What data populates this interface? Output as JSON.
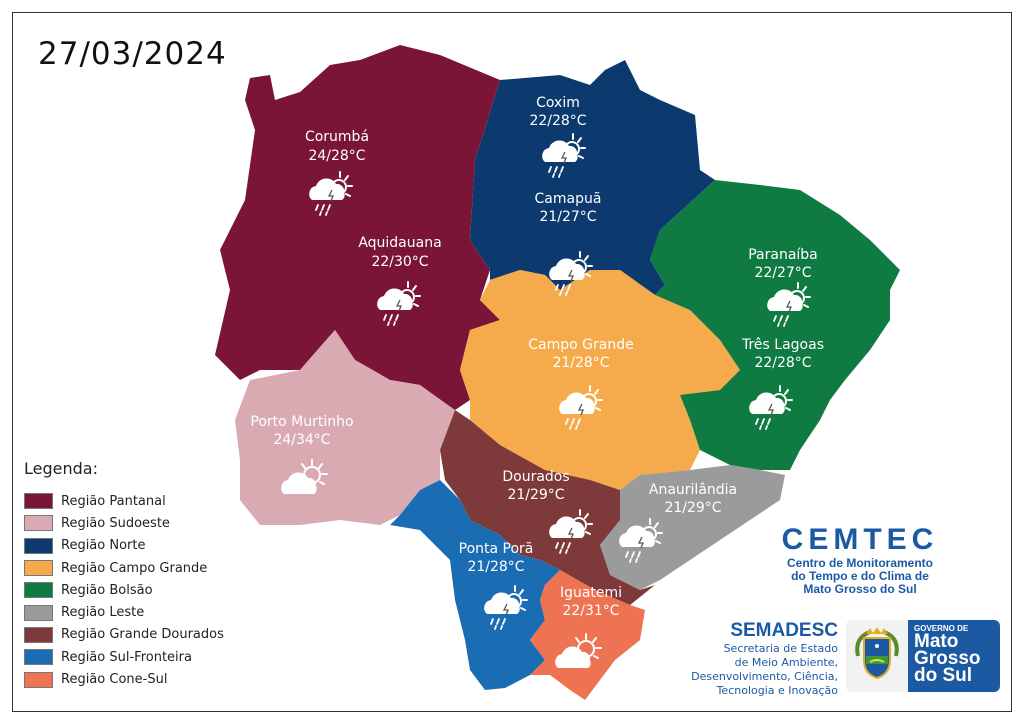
{
  "date": "27/03/2024",
  "regions": [
    {
      "id": "pantanal",
      "color": "#7a1538"
    },
    {
      "id": "sudoeste",
      "color": "#d9aab1"
    },
    {
      "id": "norte",
      "color": "#0d3a6e"
    },
    {
      "id": "campo-grande",
      "color": "#f5aa4b"
    },
    {
      "id": "bolsao",
      "color": "#0f7a41"
    },
    {
      "id": "leste",
      "color": "#9b9b9b"
    },
    {
      "id": "grande-dourados",
      "color": "#7e3a3b"
    },
    {
      "id": "sul-fronteira",
      "color": "#1a6db3"
    },
    {
      "id": "cone-sul",
      "color": "#ee7352"
    }
  ],
  "cities": [
    {
      "name": "Corumbá",
      "temp": "24/28°C",
      "icon": "storm-partly-cloudy"
    },
    {
      "name": "Aquidauana",
      "temp": "22/30°C",
      "icon": "storm-partly-cloudy"
    },
    {
      "name": "Coxim",
      "temp": "22/28°C",
      "icon": "storm-partly-cloudy"
    },
    {
      "name": "Camapuã",
      "temp": "21/27°C",
      "icon": "storm-partly-cloudy"
    },
    {
      "name": "Paranaíba",
      "temp": "22/27°C",
      "icon": "storm-partly-cloudy"
    },
    {
      "name": "Três Lagoas",
      "temp": "22/28°C",
      "icon": "storm-partly-cloudy"
    },
    {
      "name": "Campo Grande",
      "temp": "21/28°C",
      "icon": "storm-partly-cloudy"
    },
    {
      "name": "Porto Murtinho",
      "temp": "24/34°C",
      "icon": "partly-sunny"
    },
    {
      "name": "Dourados",
      "temp": "21/29°C",
      "icon": "storm-partly-cloudy"
    },
    {
      "name": "Anaurilândia",
      "temp": "21/29°C",
      "icon": "storm-partly-cloudy"
    },
    {
      "name": "Ponta Porã",
      "temp": "21/28°C",
      "icon": "storm-partly-cloudy"
    },
    {
      "name": "Iguatemi",
      "temp": "22/31°C",
      "icon": "partly-sunny"
    }
  ],
  "legend": {
    "title": "Legenda:",
    "items": [
      {
        "label": "Região Pantanal",
        "color": "#7a1538"
      },
      {
        "label": "Região Sudoeste",
        "color": "#d9aab1"
      },
      {
        "label": "Região Norte",
        "color": "#0d3a6e"
      },
      {
        "label": "Região Campo Grande",
        "color": "#f5aa4b"
      },
      {
        "label": "Região Bolsão",
        "color": "#0f7a41"
      },
      {
        "label": "Região Leste",
        "color": "#9b9b9b"
      },
      {
        "label": "Região Grande Dourados",
        "color": "#7e3a3b"
      },
      {
        "label": "Região Sul-Fronteira",
        "color": "#1a6db3"
      },
      {
        "label": "Região Cone-Sul",
        "color": "#ee7352"
      }
    ]
  },
  "cemtec": {
    "title": "CEMTEC",
    "line1": "Centro de Monitoramento",
    "line2": "do Tempo e do Clima de",
    "line3": "Mato Grosso do Sul"
  },
  "semadesc": {
    "title": "SEMADESC",
    "line1": "Secretaria de Estado",
    "line2": "de Meio Ambiente,",
    "line3": "Desenvolvimento, Ciência,",
    "line4": "Tecnologia e Inovação"
  },
  "government": {
    "small": "GOVERNO DE",
    "line1": "Mato",
    "line2": "Grosso",
    "line3": "do Sul"
  }
}
